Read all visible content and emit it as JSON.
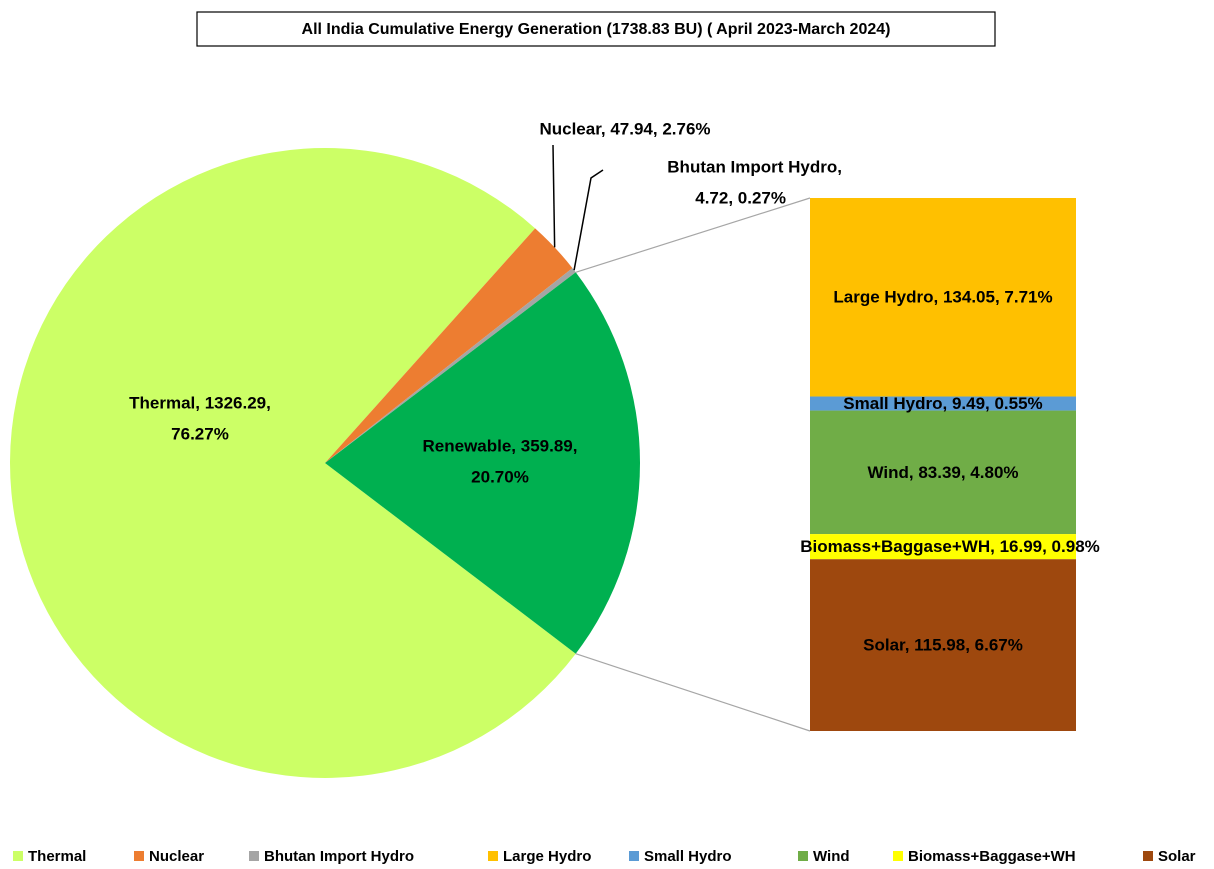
{
  "chart_data": {
    "type": "pie",
    "title": "All India Cumulative Energy Generation  (1738.83 BU) ( April 2023-March 2024)",
    "categories": [
      "Thermal",
      "Nuclear",
      "Bhutan Import Hydro",
      "Renewable"
    ],
    "values": [
      1326.29,
      47.94,
      4.72,
      359.89
    ],
    "percents": [
      76.27,
      2.76,
      0.27,
      20.7
    ],
    "value_labels": [
      [
        "Thermal, 1326.29,",
        "76.27%"
      ],
      [
        "Nuclear, 47.94, 2.76%"
      ],
      [
        "Bhutan Import Hydro,",
        "4.72, 0.27%"
      ],
      [
        "Renewable, 359.89,",
        "20.70%"
      ]
    ],
    "colors": [
      "#ccff66",
      "#ed7d31",
      "#a5a5a5",
      "#00b050"
    ],
    "breakdown": {
      "type": "bar",
      "categories": [
        "Large Hydro",
        "Small Hydro",
        "Wind",
        "Biomass+Baggase+WH",
        "Solar"
      ],
      "values": [
        134.05,
        9.49,
        83.39,
        16.99,
        115.98
      ],
      "percents": [
        7.71,
        0.55,
        4.8,
        0.98,
        6.67
      ],
      "value_labels": [
        "Large Hydro, 134.05, 7.71%",
        "Small Hydro, 9.49, 0.55%",
        "Wind, 83.39, 4.80%",
        "Biomass+Baggase+WH, 16.99, 0.98%",
        "Solar, 115.98, 6.67%"
      ],
      "colors": [
        "#ffc000",
        "#5b9bd5",
        "#70ad47",
        "#ffff00",
        "#9e480e"
      ]
    },
    "legend": "bottom"
  }
}
